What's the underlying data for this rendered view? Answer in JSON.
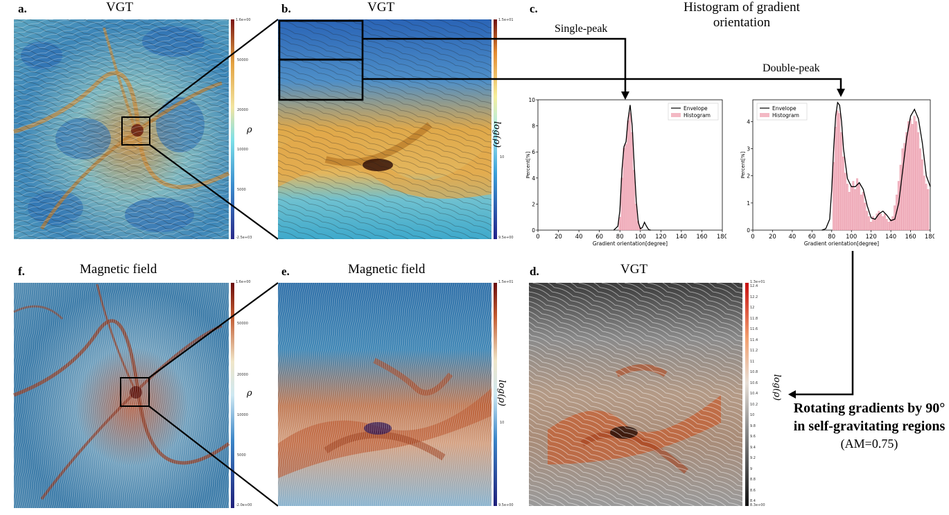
{
  "panels": {
    "a": {
      "label": "a.",
      "title": "VGT",
      "cbar_label": "ρ",
      "cbar_max": "1.6e+00",
      "cbar_min": "-2.5e+03",
      "cbar_ticks": [
        "50000",
        "20000",
        "10000",
        "5000"
      ]
    },
    "b": {
      "label": "b.",
      "title": "VGT",
      "cbar_label": "log(ρ)",
      "cbar_max": "1.5e+01",
      "cbar_min": "9.5e+00",
      "cbar_ticks": [
        "10"
      ]
    },
    "c": {
      "label": "c.",
      "title": "Histogram of gradient orientation",
      "single_peak": "Single-peak",
      "double_peak": "Double-peak"
    },
    "d": {
      "label": "d.",
      "title": "VGT",
      "cbar_label": "log(ρ)",
      "cbar_max": "1.3e+01",
      "cbar_min": "8.3e+00",
      "cbar_ticks": [
        "12.4",
        "12.2",
        "12",
        "11.8",
        "11.6",
        "11.4",
        "11.2",
        "11",
        "10.8",
        "10.6",
        "10.4",
        "10.2",
        "10",
        "9.8",
        "9.6",
        "9.4",
        "9.2",
        "9",
        "8.8",
        "8.6",
        "8.4"
      ]
    },
    "e": {
      "label": "e.",
      "title": "Magnetic field",
      "cbar_label": "log(ρ)",
      "cbar_max": "1.5e+01",
      "cbar_min": "9.5e+00",
      "cbar_ticks": [
        "10"
      ]
    },
    "f": {
      "label": "f.",
      "title": "Magnetic field",
      "cbar_label": "ρ",
      "cbar_max": "1.6e+00",
      "cbar_min": "-2.0e+00",
      "cbar_ticks": [
        "50000",
        "20000",
        "10000",
        "5000"
      ]
    }
  },
  "annotation": {
    "line1": "Rotating gradients by 90°",
    "line2": "in self-gravitating regions",
    "line3": "(AM=0.75)"
  },
  "chart_data": [
    {
      "type": "line",
      "title": "",
      "xlabel": "Gradient orientation[degree]",
      "ylabel": "Percent[%]",
      "xlim": [
        0,
        180
      ],
      "ylim": [
        0,
        10
      ],
      "xticks": [
        0,
        20,
        40,
        60,
        80,
        100,
        120,
        140,
        160,
        180
      ],
      "yticks": [
        0,
        2,
        4,
        6,
        8,
        10
      ],
      "legend": [
        "Envelope",
        "Histogram"
      ],
      "legend_position": "top-right",
      "series": [
        {
          "name": "Envelope",
          "x": [
            74,
            78,
            80,
            82,
            84,
            86,
            88,
            90,
            92,
            94,
            96,
            98,
            100,
            102,
            104,
            106,
            108,
            110
          ],
          "y": [
            0,
            0.3,
            1.5,
            4.6,
            6.4,
            6.8,
            8.5,
            9.6,
            8.0,
            5.0,
            2.2,
            0.6,
            0.1,
            0.2,
            0.6,
            0.3,
            0.05,
            0
          ]
        },
        {
          "name": "Histogram",
          "x": [
            80,
            82,
            84,
            86,
            88,
            90,
            92,
            94,
            96,
            98,
            100
          ],
          "y": [
            1.0,
            4.0,
            6.3,
            6.6,
            8.4,
            9.0,
            7.5,
            4.6,
            2.0,
            0.7,
            0.2
          ]
        }
      ]
    },
    {
      "type": "line",
      "title": "",
      "xlabel": "Gradient orientation[degree]",
      "ylabel": "Percent[%]",
      "xlim": [
        0,
        180
      ],
      "ylim": [
        0,
        4.8
      ],
      "xticks": [
        0,
        20,
        40,
        60,
        80,
        100,
        120,
        140,
        160,
        180
      ],
      "yticks": [
        0,
        1,
        2,
        3,
        4
      ],
      "legend": [
        "Envelope",
        "Histogram"
      ],
      "legend_position": "top-left",
      "series": [
        {
          "name": "Envelope",
          "x": [
            70,
            74,
            78,
            80,
            82,
            84,
            86,
            88,
            90,
            92,
            96,
            100,
            104,
            108,
            112,
            116,
            120,
            124,
            128,
            132,
            136,
            140,
            144,
            148,
            152,
            156,
            160,
            164,
            168,
            172,
            176,
            180
          ],
          "y": [
            0,
            0.05,
            0.4,
            1.5,
            3.0,
            4.2,
            4.7,
            4.6,
            4.0,
            3.0,
            1.9,
            1.6,
            1.6,
            1.75,
            1.5,
            0.9,
            0.45,
            0.4,
            0.6,
            0.7,
            0.55,
            0.35,
            0.4,
            1.0,
            2.2,
            3.4,
            4.2,
            4.45,
            4.1,
            3.2,
            2.0,
            1.6
          ]
        },
        {
          "name": "Histogram",
          "x": [
            82,
            84,
            86,
            88,
            90,
            92,
            94,
            96,
            98,
            100,
            102,
            104,
            106,
            108,
            110,
            112,
            114,
            116,
            118,
            120,
            122,
            124,
            126,
            128,
            130,
            132,
            134,
            136,
            138,
            140,
            142,
            144,
            146,
            148,
            150,
            152,
            154,
            156,
            158,
            160,
            162,
            164,
            166,
            168,
            170,
            172,
            174,
            176,
            178
          ],
          "y": [
            2.5,
            3.8,
            4.4,
            4.3,
            3.6,
            2.7,
            2.1,
            1.7,
            1.4,
            1.6,
            1.8,
            1.5,
            1.9,
            1.7,
            1.3,
            1.4,
            1.0,
            0.7,
            0.5,
            0.3,
            0.5,
            0.4,
            0.6,
            0.7,
            0.6,
            0.5,
            0.6,
            0.4,
            0.3,
            0.4,
            0.5,
            0.9,
            1.3,
            1.8,
            2.4,
            3.0,
            3.2,
            3.6,
            4.0,
            4.1,
            3.9,
            4.2,
            4.0,
            3.6,
            3.0,
            2.6,
            2.0,
            1.7,
            1.5
          ]
        }
      ]
    }
  ]
}
